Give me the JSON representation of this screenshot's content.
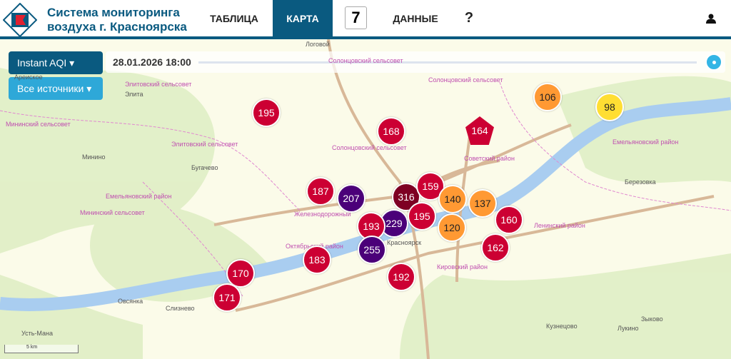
{
  "header": {
    "title_line1": "Система мониторинга",
    "title_line2": "воздуха г. Красноярска",
    "logo_text_top": "КНЦ",
    "logo_text_bottom": "СО РАН",
    "nav": {
      "table": "ТАБЛИЦА",
      "map": "КАРТА",
      "badge": "7",
      "data": "ДАННЫЕ",
      "help": "?"
    },
    "user_icon": "user-icon"
  },
  "controls": {
    "index_select": "Instant AQI",
    "source_select": "Все источники",
    "datetime": "28.01.2026 18:00"
  },
  "colors": {
    "very_unhealthy": "#4b0079",
    "hazardous": "#7e0023",
    "unhealthy": "#cc0033",
    "sensitive": "#ff9933",
    "moderate": "#ffde33",
    "brand": "#0a5a80"
  },
  "markers": [
    {
      "value": "195",
      "level": "unhealthy"
    },
    {
      "value": "168",
      "level": "unhealthy"
    },
    {
      "value": "164",
      "level": "unhealthy",
      "shape": "pentagon"
    },
    {
      "value": "106",
      "level": "sensitive"
    },
    {
      "value": "98",
      "level": "moderate"
    },
    {
      "value": "187",
      "level": "unhealthy"
    },
    {
      "value": "207",
      "level": "very_unhealthy"
    },
    {
      "value": "229",
      "level": "very_unhealthy"
    },
    {
      "value": "316",
      "level": "hazardous"
    },
    {
      "value": "159",
      "level": "unhealthy"
    },
    {
      "value": "140",
      "level": "sensitive"
    },
    {
      "value": "137",
      "level": "sensitive"
    },
    {
      "value": "195",
      "level": "unhealthy"
    },
    {
      "value": "160",
      "level": "unhealthy"
    },
    {
      "value": "193",
      "level": "unhealthy"
    },
    {
      "value": "120",
      "level": "sensitive"
    },
    {
      "value": "162",
      "level": "unhealthy"
    },
    {
      "value": "255",
      "level": "very_unhealthy"
    },
    {
      "value": "183",
      "level": "unhealthy"
    },
    {
      "value": "192",
      "level": "unhealthy"
    },
    {
      "value": "170",
      "level": "unhealthy"
    },
    {
      "value": "171",
      "level": "unhealthy"
    }
  ],
  "places": [
    "Логовой",
    "Солонцовский сельсовет",
    "Ареиское",
    "Элитовский сельсовет",
    "Элита",
    "Мининский сельсовет",
    "Элитовский сельсовет",
    "Солонцовский сельсовет",
    "Минино",
    "Бугачево",
    "Емельяновский район",
    "Мининский сельсовет",
    "Советский район",
    "Емельяновский район",
    "Березовка",
    "Ленинский район",
    "Октябрьский район",
    "Кировский район",
    "Железнодорожный",
    "Красноярск",
    "Овсянка",
    "Слизнево",
    "Усть-Мана",
    "Кузнецово",
    "Зыково",
    "Лукино",
    "Солонцовский сельсовет"
  ],
  "scale": "5 km"
}
